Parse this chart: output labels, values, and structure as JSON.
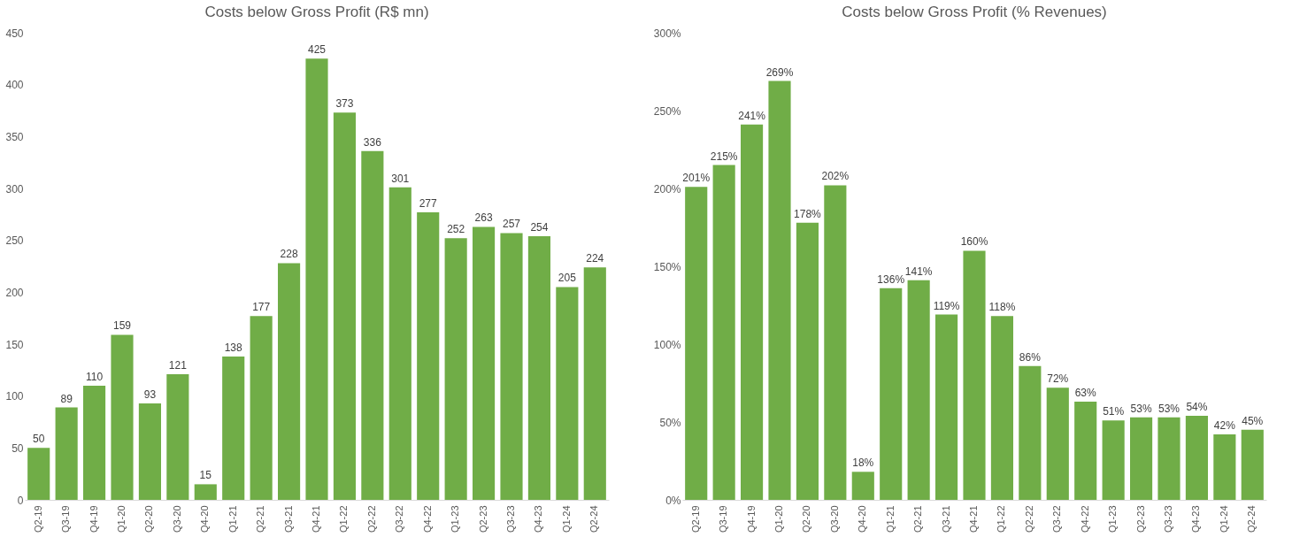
{
  "chart_data": [
    {
      "type": "bar",
      "title": "Costs below Gross Profit (R$ mn)",
      "categories": [
        "Q2-19",
        "Q3-19",
        "Q4-19",
        "Q1-20",
        "Q2-20",
        "Q3-20",
        "Q4-20",
        "Q1-21",
        "Q2-21",
        "Q3-21",
        "Q4-21",
        "Q1-22",
        "Q2-22",
        "Q3-22",
        "Q4-22",
        "Q1-23",
        "Q2-23",
        "Q3-23",
        "Q4-23",
        "Q1-24",
        "Q2-24"
      ],
      "values": [
        50,
        89,
        110,
        159,
        93,
        121,
        15,
        138,
        177,
        228,
        425,
        373,
        336,
        301,
        277,
        252,
        263,
        257,
        254,
        205,
        224
      ],
      "color": "#70ad47",
      "ylim": [
        0,
        450
      ],
      "yticks": [
        0,
        50,
        100,
        150,
        200,
        250,
        300,
        350,
        400,
        450
      ],
      "data_labels": true
    },
    {
      "type": "bar",
      "title": "Costs below Gross Profit (% Revenues)",
      "categories": [
        "Q2-19",
        "Q3-19",
        "Q4-19",
        "Q1-20",
        "Q2-20",
        "Q3-20",
        "Q4-20",
        "Q1-21",
        "Q2-21",
        "Q3-21",
        "Q4-21",
        "Q1-22",
        "Q2-22",
        "Q3-22",
        "Q4-22",
        "Q1-23",
        "Q2-23",
        "Q3-23",
        "Q4-23",
        "Q1-24",
        "Q2-24"
      ],
      "values": [
        201,
        215,
        241,
        269,
        178,
        202,
        18,
        136,
        141,
        119,
        160,
        118,
        86,
        72,
        63,
        51,
        53,
        53,
        54,
        42,
        45
      ],
      "value_labels": [
        "201%",
        "215%",
        "241%",
        "269%",
        "178%",
        "202%",
        "18%",
        "136%",
        "141%",
        "119%",
        "160%",
        "118%",
        "86%",
        "72%",
        "63%",
        "51%",
        "53%",
        "53%",
        "54%",
        "42%",
        "45%"
      ],
      "color": "#70ad47",
      "ylim": [
        0,
        300
      ],
      "yticks": [
        {
          "value": 0,
          "label": "0%"
        },
        {
          "value": 50,
          "label": "50%"
        },
        {
          "value": 100,
          "label": "100%"
        },
        {
          "value": 150,
          "label": "150%"
        },
        {
          "value": 200,
          "label": "200%"
        },
        {
          "value": 250,
          "label": "250%"
        },
        {
          "value": 300,
          "label": "300%"
        }
      ]
    }
  ]
}
